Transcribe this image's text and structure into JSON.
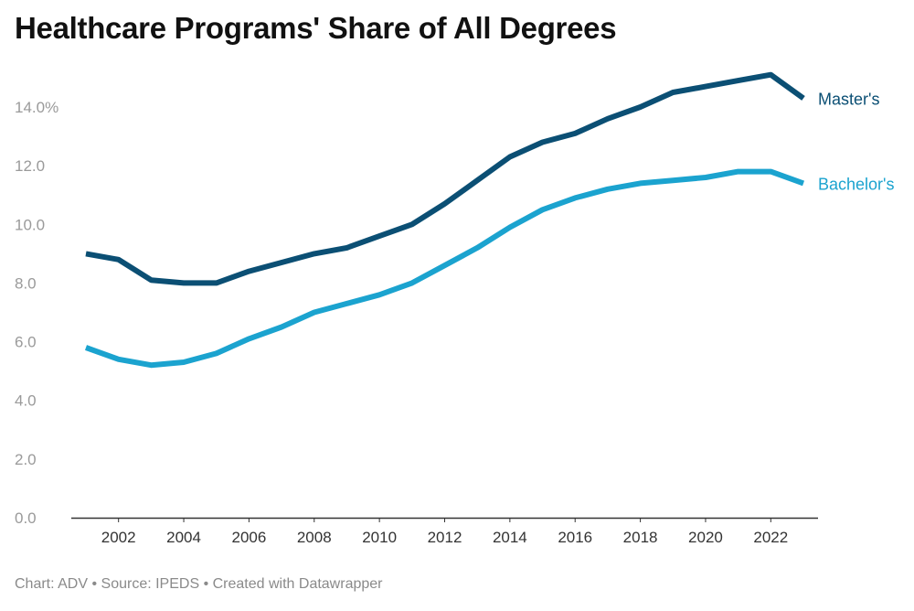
{
  "title": "Healthcare Programs' Share of All Degrees",
  "footer": {
    "text": "Chart: ADV • Source: IPEDS • Created with Datawrapper"
  },
  "chart_data": {
    "type": "line",
    "title": "Healthcare Programs' Share of All Degrees",
    "xlabel": "",
    "ylabel": "",
    "x": [
      2001,
      2002,
      2003,
      2004,
      2005,
      2006,
      2007,
      2008,
      2009,
      2010,
      2011,
      2012,
      2013,
      2014,
      2015,
      2016,
      2017,
      2018,
      2019,
      2020,
      2021,
      2022,
      2023
    ],
    "xticks": [
      2002,
      2004,
      2006,
      2008,
      2010,
      2012,
      2014,
      2016,
      2018,
      2020,
      2022
    ],
    "ylim": [
      0,
      14.0
    ],
    "yticks": [
      {
        "value": 0,
        "label": "0.0"
      },
      {
        "value": 2,
        "label": "2.0"
      },
      {
        "value": 4,
        "label": "4.0"
      },
      {
        "value": 6,
        "label": "6.0"
      },
      {
        "value": 8,
        "label": "8.0"
      },
      {
        "value": 10,
        "label": "10.0"
      },
      {
        "value": 12,
        "label": "12.0"
      },
      {
        "value": 14,
        "label": "14.0%"
      }
    ],
    "grid": false,
    "series": [
      {
        "name": "Master's",
        "color": "#0b4f74",
        "values": [
          9.0,
          8.8,
          8.1,
          8.0,
          8.0,
          8.4,
          8.7,
          9.0,
          9.2,
          9.6,
          10.0,
          10.7,
          11.5,
          12.3,
          12.8,
          13.1,
          13.6,
          14.0,
          14.5,
          14.7,
          14.9,
          15.1,
          14.3
        ]
      },
      {
        "name": "Bachelor's",
        "color": "#1ba3cf",
        "values": [
          5.8,
          5.4,
          5.2,
          5.3,
          5.6,
          6.1,
          6.5,
          7.0,
          7.3,
          7.6,
          8.0,
          8.6,
          9.2,
          9.9,
          10.5,
          10.9,
          11.2,
          11.4,
          11.5,
          11.6,
          11.8,
          11.8,
          11.4
        ]
      }
    ]
  }
}
